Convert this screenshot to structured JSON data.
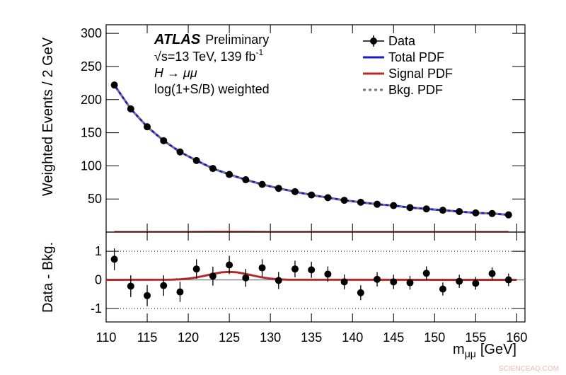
{
  "chart_data": [
    {
      "type": "fit",
      "ylabel": "Weighted Events / 2 GeV",
      "annotations": [
        "ATLAS",
        "Preliminary",
        "√s=13 TeV, 139 fb",
        "-1",
        "H → μμ",
        "log(1+S/B) weighted"
      ],
      "x": [
        111,
        113,
        115,
        117,
        119,
        121,
        123,
        125,
        127,
        129,
        131,
        133,
        135,
        137,
        139,
        141,
        143,
        145,
        147,
        149,
        151,
        153,
        155,
        157,
        159
      ],
      "xlim": [
        110,
        161
      ],
      "ylim": [
        0,
        313
      ],
      "yticks": [
        50,
        100,
        150,
        200,
        250,
        300
      ],
      "series": [
        {
          "name": "Data",
          "color": "#000000",
          "style": "points",
          "values": [
            222,
            186,
            159,
            138,
            121,
            108,
            96,
            87,
            79,
            72,
            66,
            61,
            56,
            52,
            48,
            45,
            42,
            40,
            37,
            35,
            33,
            31,
            29,
            28,
            26
          ]
        },
        {
          "name": "Total PDF",
          "color": "#1a1acc",
          "style": "solid",
          "values": [
            222,
            186,
            159,
            138,
            121,
            108,
            96,
            87,
            79,
            72,
            66,
            61,
            56,
            52,
            48,
            45,
            42,
            40,
            37,
            35,
            33,
            31,
            29,
            28,
            26
          ]
        },
        {
          "name": "Signal PDF",
          "color": "#b22a2a",
          "style": "solid",
          "values": [
            0,
            0,
            0,
            0,
            0,
            0.1,
            0.2,
            0.3,
            0.2,
            0.1,
            0,
            0,
            0,
            0,
            0,
            0,
            0,
            0,
            0,
            0,
            0,
            0,
            0,
            0,
            0
          ]
        },
        {
          "name": "Bkg. PDF",
          "color": "#777777",
          "style": "dotted",
          "values": [
            222,
            186,
            159,
            138,
            121,
            108,
            96,
            87,
            79,
            72,
            66,
            61,
            56,
            52,
            48,
            45,
            42,
            40,
            37,
            35,
            33,
            31,
            29,
            28,
            26
          ]
        }
      ]
    },
    {
      "type": "residual",
      "ylabel": "Data - Bkg.",
      "xlabel": [
        "m",
        "μμ",
        "[GeV]"
      ],
      "watermark": "SCIENCEAQ.COM",
      "x": [
        111,
        113,
        115,
        117,
        119,
        121,
        123,
        125,
        127,
        129,
        131,
        133,
        135,
        137,
        139,
        141,
        143,
        145,
        147,
        149,
        151,
        153,
        155,
        157,
        159
      ],
      "xlim": [
        110,
        161
      ],
      "xticks": [
        110,
        115,
        120,
        125,
        130,
        135,
        140,
        145,
        150,
        155,
        160
      ],
      "ylim": [
        -1.47,
        1.67
      ],
      "yticks": [
        -1,
        0,
        1
      ],
      "data": {
        "color": "#000000",
        "values": [
          0.72,
          -0.22,
          -0.55,
          -0.2,
          -0.42,
          0.38,
          0.13,
          0.52,
          0.07,
          0.42,
          -0.02,
          0.38,
          0.35,
          0.2,
          -0.07,
          -0.45,
          0.02,
          -0.07,
          -0.1,
          0.23,
          -0.32,
          -0.05,
          -0.12,
          0.22,
          0.0
        ],
        "errors": [
          0.38,
          0.38,
          0.37,
          0.36,
          0.35,
          0.34,
          0.33,
          0.32,
          0.31,
          0.3,
          0.3,
          0.29,
          0.28,
          0.27,
          0.26,
          0.26,
          0.25,
          0.25,
          0.24,
          0.24,
          0.23,
          0.23,
          0.22,
          0.22,
          0.22
        ]
      },
      "signal": {
        "color": "#b22a2a",
        "x": [
          110,
          118,
          119,
          120,
          121,
          122,
          123,
          124,
          125,
          126,
          127,
          128,
          129,
          130,
          131,
          132,
          160
        ],
        "values": [
          0,
          0.008,
          0.02,
          0.044,
          0.086,
          0.144,
          0.208,
          0.26,
          0.28,
          0.26,
          0.208,
          0.144,
          0.086,
          0.044,
          0.02,
          0.008,
          0
        ]
      },
      "bkg": {
        "color": "#888888",
        "x": [
          110,
          161
        ],
        "values": [
          0,
          0
        ]
      }
    }
  ]
}
